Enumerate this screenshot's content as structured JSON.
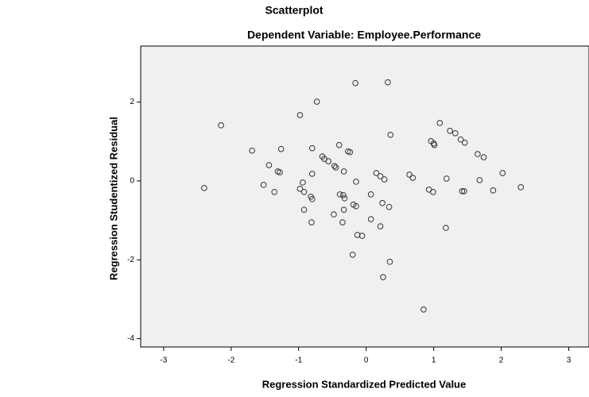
{
  "chart_data": {
    "type": "scatter",
    "title": "Scatterplot",
    "subtitle": "Dependent Variable: Employee.Performance",
    "x_label": "Regression Standardized Predicted Value",
    "y_label": "Regression Studentized Residual",
    "x": [
      -2.4,
      -2.15,
      -1.69,
      -1.52,
      -1.44,
      -1.36,
      -1.31,
      -1.28,
      -1.26,
      -0.98,
      -0.98,
      -0.92,
      -0.82,
      -0.81,
      -0.8,
      -0.8,
      -0.8,
      -0.73,
      -0.65,
      -0.62,
      -0.56,
      -0.94,
      -0.92,
      -0.47,
      -0.45,
      -0.48,
      -0.4,
      -0.39,
      -0.34,
      -0.33,
      -0.32,
      -0.33,
      -0.35,
      -0.27,
      -0.24,
      -0.16,
      -0.19,
      -0.15,
      -0.15,
      -0.2,
      -0.13,
      -0.06,
      0.07,
      0.07,
      0.15,
      0.21,
      0.27,
      0.24,
      0.32,
      0.21,
      0.34,
      0.36,
      0.35,
      0.25,
      0.64,
      0.69,
      0.85,
      0.93,
      0.96,
      1.0,
      1.01,
      0.99,
      1.09,
      1.19,
      1.18,
      1.24,
      1.32,
      1.4,
      1.46,
      1.42,
      1.45,
      1.65,
      1.74,
      1.68,
      1.88,
      2.02,
      2.29
    ],
    "values": [
      -0.18,
      1.41,
      0.77,
      -0.1,
      0.4,
      -0.28,
      0.24,
      0.22,
      0.81,
      1.67,
      -0.2,
      -0.28,
      -0.4,
      -1.05,
      -0.46,
      0.18,
      0.83,
      2.01,
      0.62,
      0.56,
      0.5,
      -0.04,
      -0.73,
      0.38,
      0.34,
      -0.85,
      0.91,
      -0.34,
      -0.36,
      0.24,
      -0.44,
      -0.73,
      -1.05,
      0.75,
      0.73,
      2.48,
      -0.6,
      -0.64,
      -0.02,
      -1.87,
      -1.37,
      -1.39,
      -0.34,
      -0.97,
      0.2,
      0.12,
      0.04,
      -0.56,
      2.5,
      -1.15,
      -0.66,
      1.17,
      -2.05,
      -2.44,
      0.16,
      0.08,
      -3.26,
      -0.22,
      1.01,
      0.95,
      0.91,
      -0.28,
      1.47,
      0.06,
      -1.19,
      1.27,
      1.21,
      1.05,
      0.97,
      -0.26,
      -0.26,
      0.68,
      0.6,
      0.02,
      -0.24,
      0.2,
      -0.16
    ],
    "color": "#333333",
    "xlim": [
      -3.34,
      3.3
    ],
    "ylim": [
      -4.21,
      3.42
    ],
    "xticks": [
      -3,
      -2,
      -1,
      0,
      1,
      2,
      3
    ],
    "yticks": [
      -4,
      -2,
      0,
      2
    ]
  }
}
